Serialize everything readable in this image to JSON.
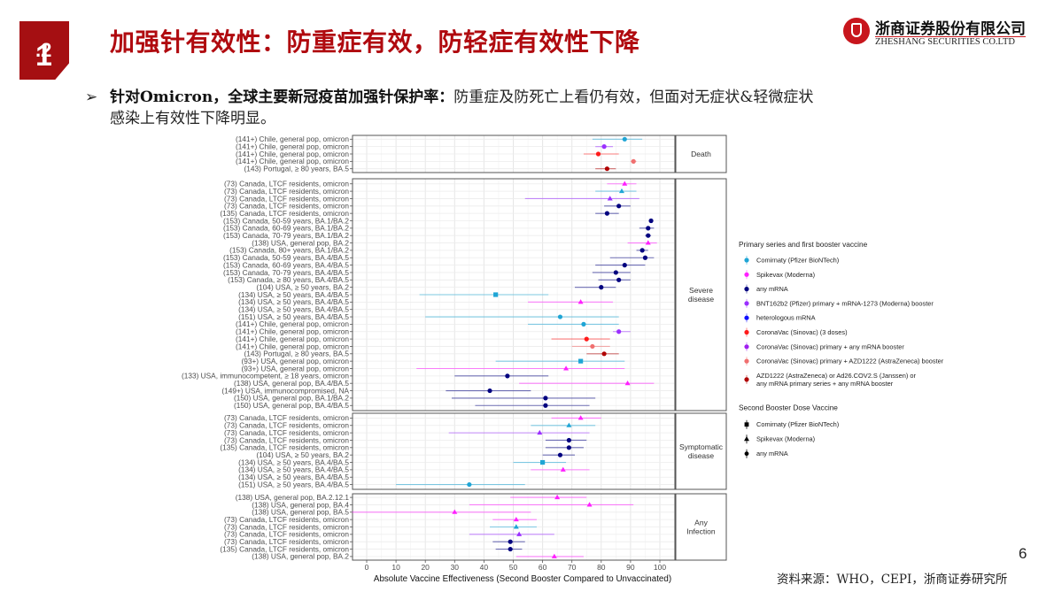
{
  "header": {
    "section_main": "1",
    "section_sub": ".2",
    "title": "加强针有效性：防重症有效，防轻症有效性下降",
    "logo_cn": "浙商证券股份有限公司",
    "logo_en": "ZHESHANG SECURITIES CO.LTD"
  },
  "bullet": {
    "arrow": "➢",
    "bold": "针对Omicron，全球主要新冠疫苗加强针保护率：",
    "text1": "防重症及防死亡上看仍有效，但面对无症状&轻微症状",
    "text2": "感染上有效性下降明显。"
  },
  "footer": {
    "page_number": "6",
    "source": "资料来源：WHO，CEPI，浙商证券研究所"
  },
  "colors": {
    "brand_red": "#b00a0f",
    "comirnaty": "#1fa5d5",
    "spikevax": "#ff1fff",
    "any_mrna": "#00007f",
    "bnt_mrna1273": "#9b30ff",
    "heterologous": "#1010ff",
    "coronavac3": "#ff1a1a",
    "coronavac_mrna": "#a020f0",
    "coronavac_azd": "#f07070",
    "azd_ad26": "#b00000"
  },
  "chart_data": {
    "type": "forest",
    "xlabel": "Absolute Vaccine Effectiveness (Second Booster Compared to Unvaccinated)",
    "xlim": [
      -5,
      105
    ],
    "xticks": [
      0,
      10,
      20,
      30,
      40,
      50,
      60,
      70,
      80,
      90,
      100
    ],
    "grid": true,
    "legend_position": "right",
    "legend": {
      "primary_title": "Primary series and first booster vaccine",
      "primary": [
        {
          "key": "comirnaty",
          "label": "Comirnaty (Pfizer BioNTech)",
          "color": "#1fa5d5"
        },
        {
          "key": "spikevax",
          "label": "Spikevax (Moderna)",
          "color": "#ff1fff"
        },
        {
          "key": "any_mrna",
          "label": "any mRNA",
          "color": "#00007f"
        },
        {
          "key": "bnt_mrna1273",
          "label": "BNT162b2 (Pfizer) primary + mRNA-1273 (Moderna) booster",
          "color": "#9b30ff"
        },
        {
          "key": "heterologous",
          "label": "heterologous mRNA",
          "color": "#1010ff"
        },
        {
          "key": "coronavac3",
          "label": "CoronaVac (Sinovac) (3 doses)",
          "color": "#ff1a1a"
        },
        {
          "key": "coronavac_mrna",
          "label": "CoronaVac (Sinovac) primary + any mRNA booster",
          "color": "#a020f0"
        },
        {
          "key": "coronavac_azd",
          "label": "CoronaVac (Sinovac) primary + AZD1222 (AstraZeneca) booster",
          "color": "#f07070"
        },
        {
          "key": "azd_ad26",
          "label": "AZD1222 (AstraZeneca) or Ad26.COV2.S (Janssen) or\nany mRNA primary series + any mRNA booster",
          "color": "#b00000"
        }
      ],
      "second_title": "Second Booster Dose Vaccine",
      "second": [
        {
          "shape": "square",
          "label": "Comirnaty (Pfizer BioNTech)"
        },
        {
          "shape": "triangle",
          "label": "Spikevax (Moderna)"
        },
        {
          "shape": "circle",
          "label": "any mRNA"
        }
      ]
    },
    "facets": [
      {
        "name": "Death",
        "rows": [
          {
            "label": "(141+) Chile, general pop, omicron",
            "est": 88,
            "lo": 77,
            "hi": 94,
            "color": "comirnaty",
            "shape": "circle"
          },
          {
            "label": "(141+) Chile, general pop, omicron",
            "est": 81,
            "lo": 78,
            "hi": 84,
            "color": "bnt_mrna1273",
            "shape": "circle"
          },
          {
            "label": "(141+) Chile, general pop, omicron",
            "est": 79,
            "lo": 74,
            "hi": 86,
            "color": "coronavac3",
            "shape": "circle"
          },
          {
            "label": "(141+) Chile, general pop, omicron",
            "est": 91,
            "lo": 90,
            "hi": 92,
            "color": "coronavac_azd",
            "shape": "circle"
          },
          {
            "label": "(143) Portugal, ≥ 80 years, BA.5",
            "est": 82,
            "lo": 78,
            "hi": 85,
            "color": "azd_ad26",
            "shape": "circle"
          }
        ]
      },
      {
        "name": "Severe\ndisease",
        "rows": [
          {
            "label": "(73) Canada, LTCF residents, omicron",
            "est": 88,
            "lo": 82,
            "hi": 92,
            "color": "spikevax",
            "shape": "triangle"
          },
          {
            "label": "(73) Canada, LTCF residents, omicron",
            "est": 87,
            "lo": 78,
            "hi": 92,
            "color": "comirnaty",
            "shape": "triangle"
          },
          {
            "label": "(73) Canada, LTCF residents, omicron",
            "est": 83,
            "lo": 54,
            "hi": 93,
            "color": "bnt_mrna1273",
            "shape": "triangle"
          },
          {
            "label": "(73) Canada, LTCF residents, omicron",
            "est": 86,
            "lo": 81,
            "hi": 90,
            "color": "any_mrna",
            "shape": "circle"
          },
          {
            "label": "(135) Canada, LTCF residents, omicron",
            "est": 82,
            "lo": 78,
            "hi": 86,
            "color": "any_mrna",
            "shape": "circle"
          },
          {
            "label": "(153) Canada, 50-59 years, BA.1/BA.2",
            "est": 97,
            "lo": 97,
            "hi": 97,
            "color": "any_mrna",
            "shape": "circle"
          },
          {
            "label": "(153) Canada, 60-69 years, BA.1/BA.2",
            "est": 96,
            "lo": 93,
            "hi": 98,
            "color": "any_mrna",
            "shape": "circle"
          },
          {
            "label": "(153) Canada, 70-79 years, BA.1/BA.2",
            "est": 96,
            "lo": 95,
            "hi": 97,
            "color": "any_mrna",
            "shape": "circle"
          },
          {
            "label": "(138) USA, general pop, BA.2",
            "est": 96,
            "lo": 89,
            "hi": 99,
            "color": "spikevax",
            "shape": "triangle"
          },
          {
            "label": "(153) Canada, 80+ years, BA.1/BA.2",
            "est": 94,
            "lo": 92,
            "hi": 96,
            "color": "any_mrna",
            "shape": "circle"
          },
          {
            "label": "(153) Canada, 50-59 years, BA.4/BA.5",
            "est": 95,
            "lo": 83,
            "hi": 98,
            "color": "any_mrna",
            "shape": "circle"
          },
          {
            "label": "(153) Canada, 60-69 years, BA.4/BA.5",
            "est": 88,
            "lo": 78,
            "hi": 95,
            "color": "any_mrna",
            "shape": "circle"
          },
          {
            "label": "(153) Canada, 70-79 years, BA.4/BA.5",
            "est": 85,
            "lo": 77,
            "hi": 90,
            "color": "any_mrna",
            "shape": "circle"
          },
          {
            "label": "(153) Canada, ≥ 80 years, BA.4/BA.5",
            "est": 86,
            "lo": 79,
            "hi": 90,
            "color": "any_mrna",
            "shape": "circle"
          },
          {
            "label": "(104) USA, ≥ 50 years, BA.2",
            "est": 80,
            "lo": 71,
            "hi": 85,
            "color": "any_mrna",
            "shape": "circle"
          },
          {
            "label": "(134) USA, ≥ 50 years, BA.4/BA.5",
            "est": 44,
            "lo": 18,
            "hi": 62,
            "color": "comirnaty",
            "shape": "square"
          },
          {
            "label": "(134) USA, ≥ 50 years, BA.4/BA.5",
            "est": 73,
            "lo": 55,
            "hi": 84,
            "color": "spikevax",
            "shape": "triangle"
          },
          {
            "label": "(134) USA, ≥ 50 years, BA.4/BA.5",
            "est": null,
            "lo": null,
            "hi": null,
            "color": "any_mrna",
            "shape": "circle"
          },
          {
            "label": "(151) USA, ≥ 50 years, BA.4/BA.5",
            "est": 66,
            "lo": 20,
            "hi": 86,
            "color": "comirnaty",
            "shape": "circle"
          },
          {
            "label": "(141+) Chile, general pop, omicron",
            "est": 74,
            "lo": 55,
            "hi": 86,
            "color": "comirnaty",
            "shape": "circle"
          },
          {
            "label": "(141+) Chile, general pop, omicron",
            "est": 86,
            "lo": 84,
            "hi": 90,
            "color": "bnt_mrna1273",
            "shape": "circle"
          },
          {
            "label": "(141+) Chile, general pop, omicron",
            "est": 75,
            "lo": 63,
            "hi": 83,
            "color": "coronavac3",
            "shape": "circle"
          },
          {
            "label": "(141+) Chile, general pop, omicron",
            "est": 77,
            "lo": 70,
            "hi": 83,
            "color": "coronavac_azd",
            "shape": "circle"
          },
          {
            "label": "(143) Portugal, ≥ 80 years, BA.5",
            "est": 81,
            "lo": 75,
            "hi": 86,
            "color": "azd_ad26",
            "shape": "circle"
          },
          {
            "label": "(93+) USA, general pop, omicron",
            "est": 73,
            "lo": 44,
            "hi": 88,
            "color": "comirnaty",
            "shape": "square"
          },
          {
            "label": "(93+) USA, general pop, omicron",
            "est": 68,
            "lo": 17,
            "hi": 88,
            "color": "spikevax",
            "shape": "triangle"
          },
          {
            "label": "(133) USA, immunocompetent, ≥ 18 years, omicron",
            "est": 48,
            "lo": 30,
            "hi": 62,
            "color": "any_mrna",
            "shape": "circle"
          },
          {
            "label": "(138) USA, general pop, BA.4/BA.5",
            "est": 89,
            "lo": 52,
            "hi": 98,
            "color": "spikevax",
            "shape": "triangle"
          },
          {
            "label": "(149+) USA, immunocompromised, NA",
            "est": 42,
            "lo": 27,
            "hi": 56,
            "color": "any_mrna",
            "shape": "circle"
          },
          {
            "label": "(150) USA, general pop, BA.1/BA.2",
            "est": 61,
            "lo": 29,
            "hi": 78,
            "color": "any_mrna",
            "shape": "circle"
          },
          {
            "label": "(150) USA, general pop, BA.4/BA.5",
            "est": 61,
            "lo": 37,
            "hi": 76,
            "color": "any_mrna",
            "shape": "circle"
          }
        ]
      },
      {
        "name": "Symptomatic\ndisease",
        "rows": [
          {
            "label": "(73) Canada, LTCF residents, omicron",
            "est": 73,
            "lo": 63,
            "hi": 80,
            "color": "spikevax",
            "shape": "triangle"
          },
          {
            "label": "(73) Canada, LTCF residents, omicron",
            "est": 69,
            "lo": 56,
            "hi": 78,
            "color": "comirnaty",
            "shape": "triangle"
          },
          {
            "label": "(73) Canada, LTCF residents, omicron",
            "est": 59,
            "lo": 28,
            "hi": 76,
            "color": "bnt_mrna1273",
            "shape": "triangle"
          },
          {
            "label": "(73) Canada, LTCF residents, omicron",
            "est": 69,
            "lo": 61,
            "hi": 75,
            "color": "any_mrna",
            "shape": "circle"
          },
          {
            "label": "(135) Canada, LTCF residents, omicron",
            "est": 69,
            "lo": 61,
            "hi": 74,
            "color": "any_mrna",
            "shape": "circle"
          },
          {
            "label": "(104) USA, ≥ 50 years, BA.2",
            "est": 66,
            "lo": 60,
            "hi": 71,
            "color": "any_mrna",
            "shape": "circle"
          },
          {
            "label": "(134) USA, ≥ 50 years, BA.4/BA.5",
            "est": 60,
            "lo": 50,
            "hi": 68,
            "color": "comirnaty",
            "shape": "square"
          },
          {
            "label": "(134) USA, ≥ 50 years, BA.4/BA.5",
            "est": 67,
            "lo": 56,
            "hi": 76,
            "color": "spikevax",
            "shape": "triangle"
          },
          {
            "label": "(134) USA, ≥ 50 years, BA.4/BA.5",
            "est": null,
            "lo": null,
            "hi": null,
            "color": "any_mrna",
            "shape": "circle"
          },
          {
            "label": "(151) USA, ≥ 50 years, BA.4/BA.5",
            "est": 35,
            "lo": 10,
            "hi": 54,
            "color": "comirnaty",
            "shape": "circle"
          }
        ]
      },
      {
        "name": "Any\nInfection",
        "rows": [
          {
            "label": "(138) USA, general pop, BA.2.12.1",
            "est": 65,
            "lo": 49,
            "hi": 75,
            "color": "spikevax",
            "shape": "triangle"
          },
          {
            "label": "(138) USA, general pop, BA.4",
            "est": 76,
            "lo": 35,
            "hi": 91,
            "color": "spikevax",
            "shape": "triangle"
          },
          {
            "label": "(138) USA, general pop, BA.5",
            "est": 30,
            "lo": -5,
            "hi": 56,
            "color": "spikevax",
            "shape": "triangle"
          },
          {
            "label": "(73) Canada, LTCF residents, omicron",
            "est": 51,
            "lo": 43,
            "hi": 58,
            "color": "spikevax",
            "shape": "triangle"
          },
          {
            "label": "(73) Canada, LTCF residents, omicron",
            "est": 51,
            "lo": 42,
            "hi": 58,
            "color": "comirnaty",
            "shape": "triangle"
          },
          {
            "label": "(73) Canada, LTCF residents, omicron",
            "est": 52,
            "lo": 35,
            "hi": 64,
            "color": "bnt_mrna1273",
            "shape": "triangle"
          },
          {
            "label": "(73) Canada, LTCF residents, omicron",
            "est": 49,
            "lo": 43,
            "hi": 54,
            "color": "any_mrna",
            "shape": "circle"
          },
          {
            "label": "(135) Canada, LTCF residents, omicron",
            "est": 49,
            "lo": 44,
            "hi": 53,
            "color": "any_mrna",
            "shape": "circle"
          },
          {
            "label": "(138) USA, general pop, BA.2",
            "est": 64,
            "lo": 51,
            "hi": 74,
            "color": "spikevax",
            "shape": "triangle"
          }
        ]
      }
    ]
  }
}
